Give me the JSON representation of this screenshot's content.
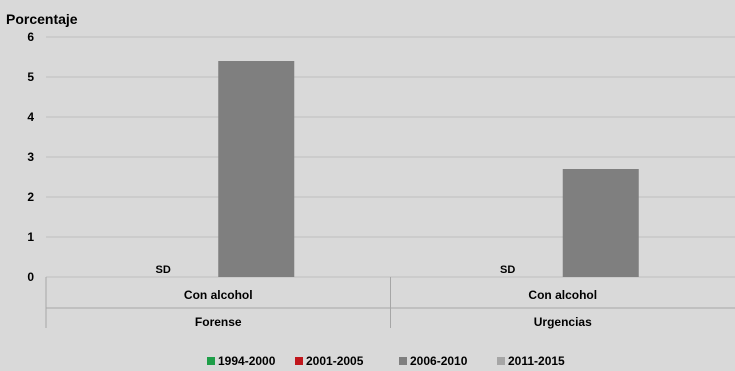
{
  "chart_data": {
    "type": "bar",
    "ylabel": "Porcentaje",
    "ylim": [
      0,
      6
    ],
    "yticks": [
      0,
      1,
      2,
      3,
      4,
      5,
      6
    ],
    "grid": true,
    "legend_position": "bottom",
    "categories": [
      {
        "sub": "Con alcohol",
        "group": "Forense"
      },
      {
        "sub": "Con alcohol",
        "group": "Urgencias"
      }
    ],
    "series": [
      {
        "name": "1994-2000",
        "color": "#1e9e48",
        "values": [
          null,
          null
        ]
      },
      {
        "name": "2001-2005",
        "color": "#c0161c",
        "values": [
          null,
          null
        ]
      },
      {
        "name": "2006-2010",
        "color": "#7f7f7f",
        "values": [
          5.4,
          2.7
        ]
      },
      {
        "name": "2011-2015",
        "color": "#a6a6a6",
        "values": [
          null,
          null
        ]
      }
    ],
    "annotations": [
      {
        "text": "SD",
        "category_index": 0
      },
      {
        "text": "SD",
        "category_index": 1
      }
    ]
  }
}
